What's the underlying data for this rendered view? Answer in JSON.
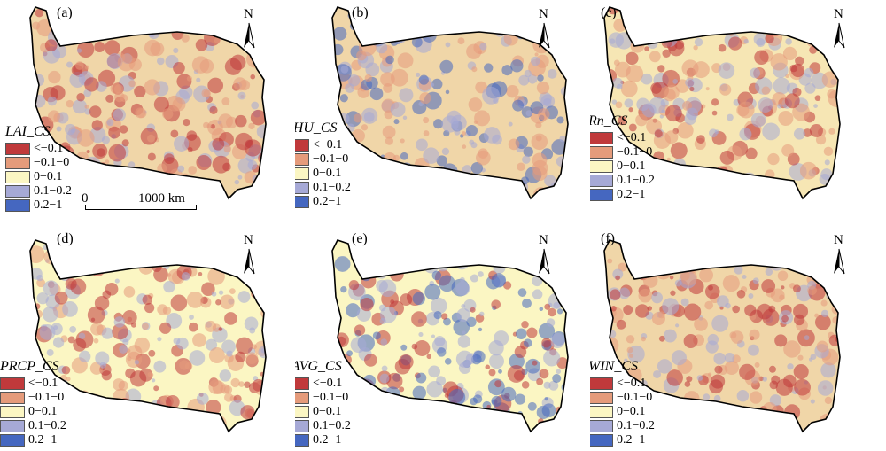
{
  "legend_classes": [
    {
      "label": "<−0.1",
      "color": "#c0393b"
    },
    {
      "label": "−0.1−0",
      "color": "#e59b7b"
    },
    {
      "label": "0−0.1",
      "color": "#fbf6c3"
    },
    {
      "label": "0.1−0.2",
      "color": "#a6a9d6"
    },
    {
      "label": "0.2−1",
      "color": "#4567c0"
    }
  ],
  "north_letter": "N",
  "scale_bar": {
    "start": "0",
    "end": "1000 km"
  },
  "panels": [
    {
      "letter": "(a)",
      "title": "LAI_CS",
      "dominant": "#f0d6a8",
      "patches": [
        "#e59b7b",
        "#a6a9d6",
        "#c0393b"
      ]
    },
    {
      "letter": "(b)",
      "title": "RHU_CS",
      "dominant": "#f0d6a8",
      "patches": [
        "#e59b7b",
        "#a6a9d6",
        "#4567c0"
      ]
    },
    {
      "letter": "(c)",
      "title": "Rn_CS",
      "dominant": "#f6e6b4",
      "patches": [
        "#e59b7b",
        "#a6a9d6",
        "#c0393b"
      ]
    },
    {
      "letter": "(d)",
      "title": "PRCP_CS",
      "dominant": "#fbf6c3",
      "patches": [
        "#a6a9d6",
        "#e59b7b",
        "#c0393b"
      ]
    },
    {
      "letter": "(e)",
      "title": "TAVG_CS",
      "dominant": "#fbf6c3",
      "patches": [
        "#4567c0",
        "#a6a9d6",
        "#c0393b"
      ]
    },
    {
      "letter": "(f)",
      "title": "WIN_CS",
      "dominant": "#f0d6a8",
      "patches": [
        "#e59b7b",
        "#a6a9d6",
        "#c0393b"
      ]
    }
  ]
}
